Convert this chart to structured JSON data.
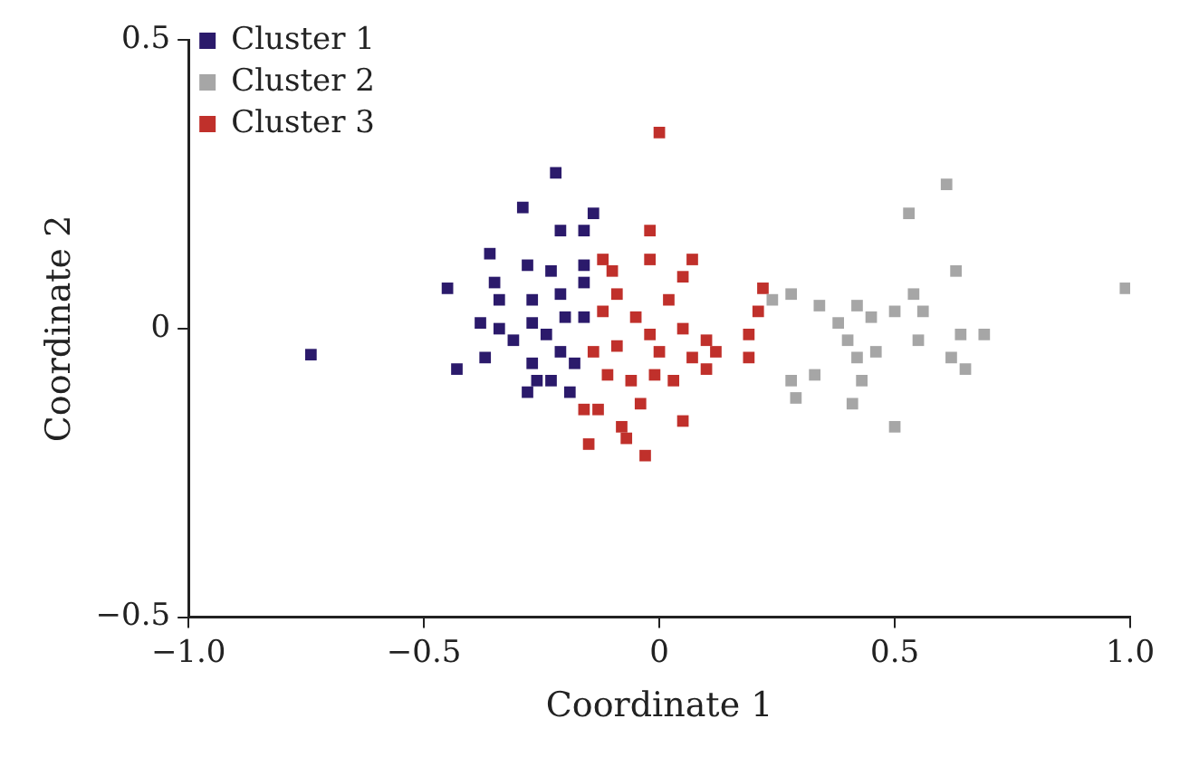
{
  "chart_data": {
    "type": "scatter",
    "xlabel": "Coordinate 1",
    "ylabel": "Coordinate 2",
    "xlim": [
      -1,
      1
    ],
    "ylim": [
      -0.5,
      0.5
    ],
    "xticks": [
      {
        "value": -1,
        "label": "−1.0"
      },
      {
        "value": -0.5,
        "label": "−0.5"
      },
      0,
      {
        "value": 0.5,
        "label": "0.5"
      },
      {
        "value": 1,
        "label": "1.0"
      }
    ],
    "yticks": [
      {
        "value": -0.5,
        "label": "−0.5"
      },
      0,
      0.5
    ],
    "grid": false,
    "legend": "top left",
    "marker": "square",
    "series": [
      {
        "name": "Cluster 1",
        "color": "#2b1a6b",
        "x": [
          -0.74,
          -0.45,
          -0.43,
          -0.36,
          -0.37,
          -0.29,
          -0.22,
          -0.21,
          -0.16,
          -0.14,
          -0.28,
          -0.23,
          -0.16,
          -0.35,
          -0.34,
          -0.27,
          -0.21,
          -0.16,
          -0.38,
          -0.34,
          -0.31,
          -0.27,
          -0.24,
          -0.2,
          -0.16,
          -0.21,
          -0.27,
          -0.23,
          -0.28,
          -0.19,
          -0.26,
          -0.18
        ],
        "values": [
          -0.045,
          0.07,
          -0.07,
          0.13,
          -0.05,
          0.21,
          0.27,
          0.17,
          0.17,
          0.2,
          0.11,
          0.1,
          0.11,
          0.08,
          0.05,
          0.05,
          0.06,
          0.08,
          0.01,
          0,
          -0.02,
          0.01,
          -0.01,
          0.02,
          0.02,
          -0.04,
          -0.06,
          -0.09,
          -0.11,
          -0.11,
          -0.09,
          -0.06
        ]
      },
      {
        "name": "Cluster 2",
        "color": "#a6a6a6",
        "x": [
          0.61,
          0.53,
          0.63,
          0.99,
          0.24,
          0.28,
          0.34,
          0.38,
          0.42,
          0.45,
          0.4,
          0.46,
          0.5,
          0.54,
          0.56,
          0.55,
          0.64,
          0.69,
          0.62,
          0.65,
          0.33,
          0.28,
          0.29,
          0.43,
          0.41,
          0.5,
          0.42
        ],
        "values": [
          0.25,
          0.2,
          0.1,
          0.07,
          0.05,
          0.06,
          0.04,
          0.01,
          0.04,
          0.02,
          -0.02,
          -0.04,
          0.03,
          0.06,
          0.03,
          -0.02,
          -0.01,
          -0.01,
          -0.05,
          -0.07,
          -0.08,
          -0.09,
          -0.12,
          -0.09,
          -0.13,
          -0.17,
          -0.05
        ]
      },
      {
        "name": "Cluster 3",
        "color": "#c0302b",
        "x": [
          0,
          -0.02,
          -0.02,
          -0.12,
          -0.1,
          0.07,
          0.05,
          -0.09,
          0.02,
          -0.12,
          0.22,
          0.21,
          -0.05,
          -0.02,
          0.05,
          0.1,
          0.19,
          0.19,
          -0.14,
          -0.09,
          0,
          0.07,
          0.12,
          -0.11,
          -0.06,
          -0.01,
          0.03,
          -0.16,
          -0.13,
          -0.04,
          0.05,
          -0.08,
          -0.07,
          -0.15,
          -0.03,
          0.1
        ],
        "values": [
          0.34,
          0.17,
          0.12,
          0.12,
          0.1,
          0.12,
          0.09,
          0.06,
          0.05,
          0.03,
          0.07,
          0.03,
          0.02,
          -0.01,
          0,
          -0.02,
          -0.01,
          -0.05,
          -0.04,
          -0.03,
          -0.04,
          -0.05,
          -0.04,
          -0.08,
          -0.09,
          -0.08,
          -0.09,
          -0.14,
          -0.14,
          -0.13,
          -0.16,
          -0.17,
          -0.19,
          -0.2,
          -0.22,
          -0.07
        ]
      }
    ]
  }
}
